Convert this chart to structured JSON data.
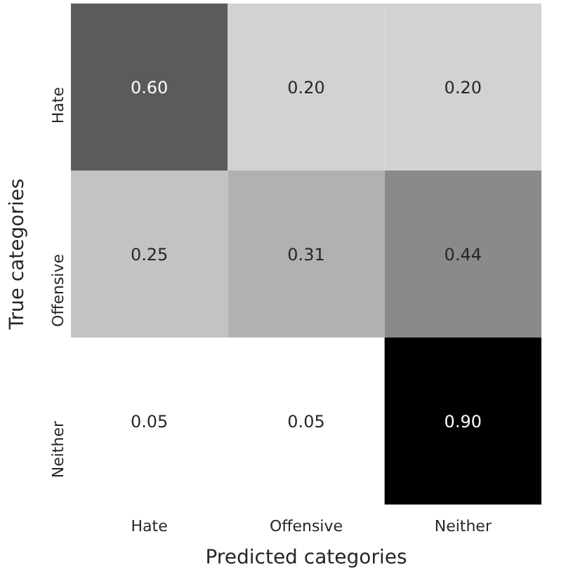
{
  "chart_data": {
    "type": "heatmap",
    "xlabel": "Predicted categories",
    "ylabel": "True categories",
    "categories": [
      "Hate",
      "Offensive",
      "Neither"
    ],
    "y_categories": [
      "Hate",
      "Offensive",
      "Neither"
    ],
    "cells": [
      [
        0.6,
        0.2,
        0.2
      ],
      [
        0.25,
        0.31,
        0.44
      ],
      [
        0.05,
        0.05,
        0.9
      ]
    ],
    "cell_labels": [
      [
        "0.60",
        "0.20",
        "0.20"
      ],
      [
        "0.25",
        "0.31",
        "0.44"
      ],
      [
        "0.05",
        "0.05",
        "0.90"
      ]
    ]
  }
}
